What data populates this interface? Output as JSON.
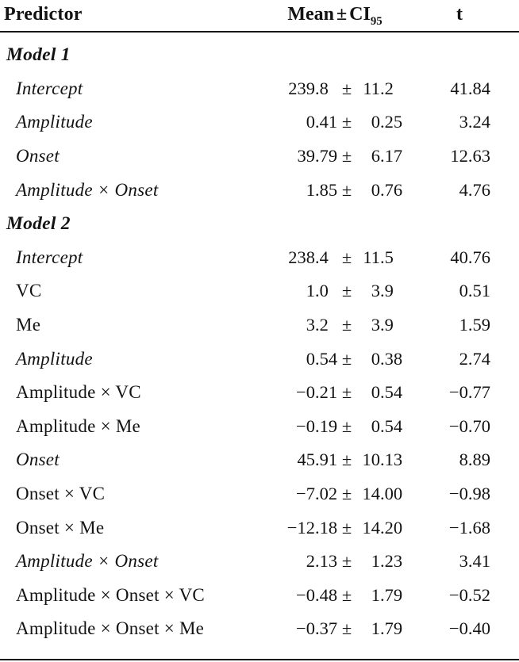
{
  "header": {
    "predictor": "Predictor",
    "mean_label": "Mean",
    "pm": "±",
    "ci_label": "CI",
    "ci_sub": "95",
    "t": "t"
  },
  "symbols": {
    "pm": "±"
  },
  "rows": [
    {
      "type": "section",
      "label": "Model 1"
    },
    {
      "type": "data",
      "label": "Intercept",
      "italic": true,
      "mean_int": "239",
      "mean_frac": ".8",
      "ci_int": "11",
      "ci_frac": ".2",
      "t": "41.84"
    },
    {
      "type": "data",
      "label": "Amplitude",
      "italic": true,
      "mean_int": "0",
      "mean_frac": ".41",
      "ci_int": "0",
      "ci_frac": ".25",
      "t": "3.24"
    },
    {
      "type": "data",
      "label": "Onset",
      "italic": true,
      "mean_int": "39",
      "mean_frac": ".79",
      "ci_int": "6",
      "ci_frac": ".17",
      "t": "12.63"
    },
    {
      "type": "data",
      "label": "Amplitude × Onset",
      "italic": true,
      "mean_int": "1",
      "mean_frac": ".85",
      "ci_int": "0",
      "ci_frac": ".76",
      "t": "4.76"
    },
    {
      "type": "section",
      "label": "Model 2"
    },
    {
      "type": "data",
      "label": "Intercept",
      "italic": true,
      "mean_int": "238",
      "mean_frac": ".4",
      "ci_int": "11",
      "ci_frac": ".5",
      "t": "40.76"
    },
    {
      "type": "data",
      "label": "VC",
      "italic": false,
      "mean_int": "1",
      "mean_frac": ".0",
      "ci_int": "3",
      "ci_frac": ".9",
      "t": "0.51"
    },
    {
      "type": "data",
      "label": "Me",
      "italic": false,
      "mean_int": "3",
      "mean_frac": ".2",
      "ci_int": "3",
      "ci_frac": ".9",
      "t": "1.59"
    },
    {
      "type": "data",
      "label": "Amplitude",
      "italic": true,
      "mean_int": "0",
      "mean_frac": ".54",
      "ci_int": "0",
      "ci_frac": ".38",
      "t": "2.74"
    },
    {
      "type": "data",
      "label": "Amplitude × VC",
      "italic": false,
      "mean_int": "−0",
      "mean_frac": ".21",
      "ci_int": "0",
      "ci_frac": ".54",
      "t": "−0.77"
    },
    {
      "type": "data",
      "label": "Amplitude × Me",
      "italic": false,
      "mean_int": "−0",
      "mean_frac": ".19",
      "ci_int": "0",
      "ci_frac": ".54",
      "t": "−0.70"
    },
    {
      "type": "data",
      "label": "Onset",
      "italic": true,
      "mean_int": "45",
      "mean_frac": ".91",
      "ci_int": "10",
      "ci_frac": ".13",
      "t": "8.89"
    },
    {
      "type": "data",
      "label": "Onset × VC",
      "italic": false,
      "mean_int": "−7",
      "mean_frac": ".02",
      "ci_int": "14",
      "ci_frac": ".00",
      "t": "−0.98"
    },
    {
      "type": "data",
      "label": "Onset × Me",
      "italic": false,
      "mean_int": "−12",
      "mean_frac": ".18",
      "ci_int": "14",
      "ci_frac": ".20",
      "t": "−1.68"
    },
    {
      "type": "data",
      "label": "Amplitude × Onset",
      "italic": true,
      "mean_int": "2",
      "mean_frac": ".13",
      "ci_int": "1",
      "ci_frac": ".23",
      "t": "3.41"
    },
    {
      "type": "data",
      "label": "Amplitude × Onset × VC",
      "italic": false,
      "mean_int": "−0",
      "mean_frac": ".48",
      "ci_int": "1",
      "ci_frac": ".79",
      "t": "−0.52"
    },
    {
      "type": "data",
      "label": "Amplitude × Onset × Me",
      "italic": false,
      "mean_int": "−0",
      "mean_frac": ".37",
      "ci_int": "1",
      "ci_frac": ".79",
      "t": "−0.40"
    }
  ]
}
